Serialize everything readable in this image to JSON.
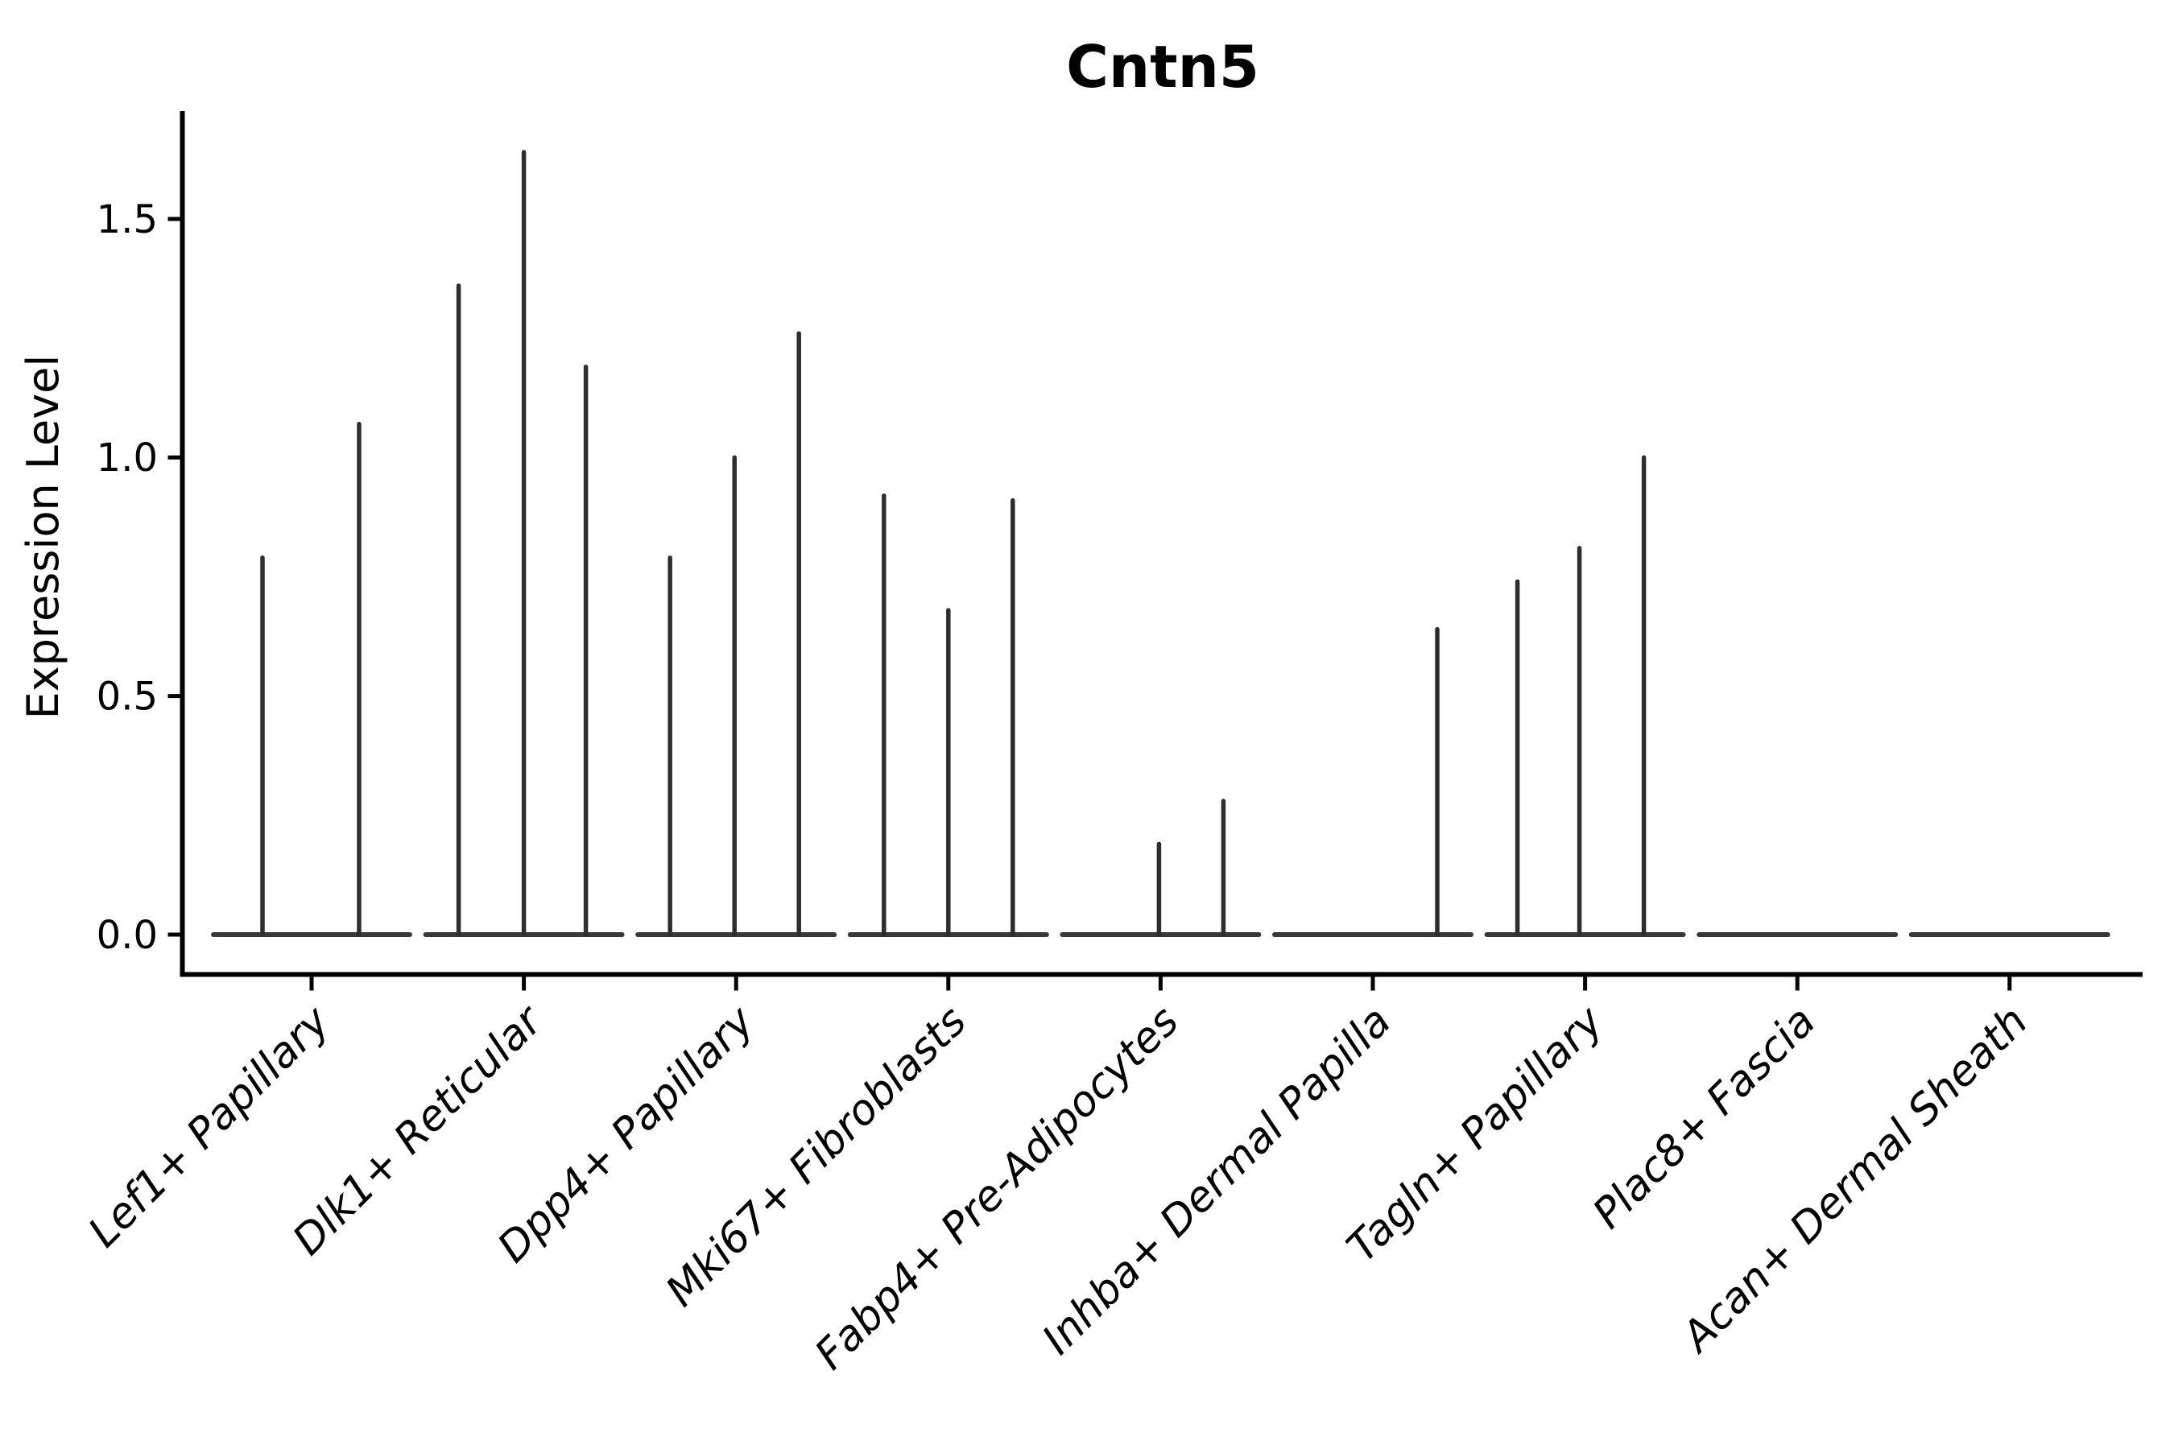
{
  "figure": {
    "title": "Cntn5",
    "y_axis_label": "Expression Level"
  },
  "colors": {
    "background": "#ffffff",
    "axis": "#000000",
    "text": "#000000",
    "violin_baseline_stroke": "#383838",
    "violin_spike_stroke": "#2e2e2e"
  },
  "chart_data": {
    "type": "violin",
    "subtype": "seurat-vlnplot-thin-spike-violins",
    "title": "Cntn5",
    "xlabel": "",
    "ylabel": "Expression Level",
    "ylim": [
      -0.08,
      1.72
    ],
    "yticks": [
      0,
      0.5,
      1,
      1.5
    ],
    "ytick_labels": [
      "0.0",
      "0.5",
      "1.0",
      "1.5"
    ],
    "grid": false,
    "legend": "none",
    "x_tick_rotation_deg": 45,
    "categories": [
      "Lef1+ Papillary",
      "Dlk1+ Reticular",
      "Dpp4+ Papillary",
      "Mki67+ Fibroblasts",
      "Fabp4+ Pre-Adipocytes",
      "Inhba+ Dermal Papilla",
      "Tagln+ Papillary",
      "Plac8+ Fascia",
      "Acan+ Dermal Sheath"
    ],
    "violins": [
      {
        "category": "Lef1+ Papillary",
        "base_value": 0,
        "spikes": [
          {
            "dx": -61,
            "value": 0.79
          },
          {
            "dx": 59,
            "value": 1.07
          }
        ]
      },
      {
        "category": "Dlk1+ Reticular",
        "base_value": 0,
        "spikes": [
          {
            "dx": -81,
            "value": 1.36
          },
          {
            "dx": 0,
            "value": 1.64
          },
          {
            "dx": 77,
            "value": 1.19
          }
        ]
      },
      {
        "category": "Dpp4+ Papillary",
        "base_value": 0,
        "spikes": [
          {
            "dx": -82,
            "value": 0.79
          },
          {
            "dx": -2,
            "value": 1.0
          },
          {
            "dx": 78,
            "value": 1.26
          }
        ]
      },
      {
        "category": "Mki67+ Fibroblasts",
        "base_value": 0,
        "spikes": [
          {
            "dx": -80,
            "value": 0.92
          },
          {
            "dx": 0,
            "value": 0.68
          },
          {
            "dx": 80,
            "value": 0.91
          }
        ]
      },
      {
        "category": "Fabp4+ Pre-Adipocytes",
        "base_value": 0,
        "spikes": [
          {
            "dx": -2,
            "value": 0.19
          },
          {
            "dx": 78,
            "value": 0.28
          }
        ]
      },
      {
        "category": "Inhba+ Dermal Papilla",
        "base_value": 0,
        "spikes": [
          {
            "dx": 80,
            "value": 0.64
          }
        ]
      },
      {
        "category": "Tagln+ Papillary",
        "base_value": 0,
        "spikes": [
          {
            "dx": -84,
            "value": 0.74
          },
          {
            "dx": -7,
            "value": 0.81
          },
          {
            "dx": 73,
            "value": 1.0
          }
        ]
      },
      {
        "category": "Plac8+ Fascia",
        "base_value": 0,
        "spikes": []
      },
      {
        "category": "Acan+ Dermal Sheath",
        "base_value": 0,
        "spikes": []
      }
    ]
  }
}
